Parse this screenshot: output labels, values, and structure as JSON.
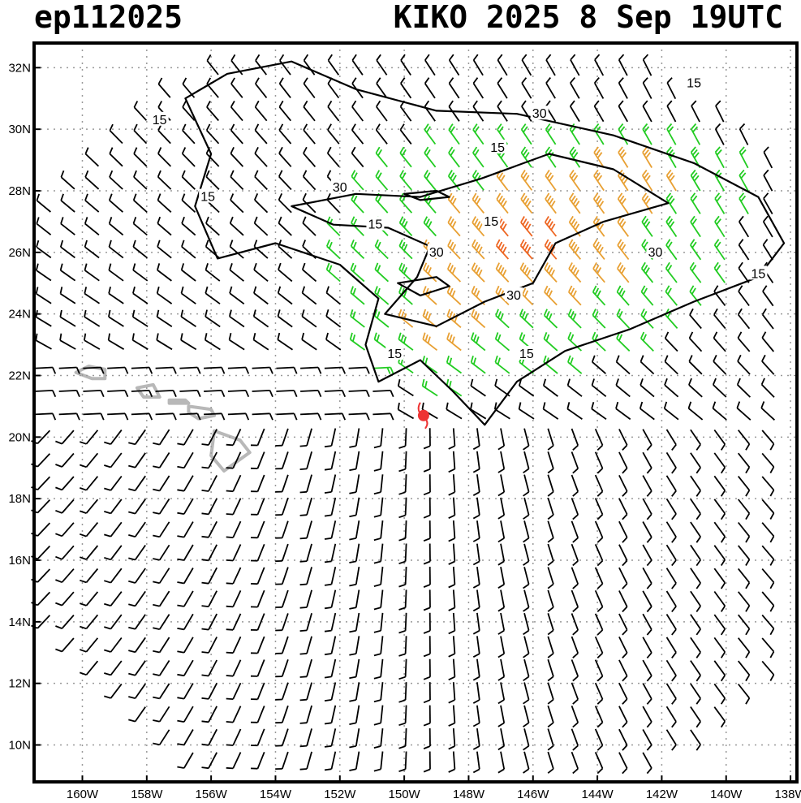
{
  "title_left": "ep112025",
  "title_right": "KIKO 2025  8 Sep 19UTC",
  "map": {
    "lon_range": [
      -161.5,
      -137.8
    ],
    "lat_range": [
      8.8,
      32.8
    ],
    "lat_ticks": [
      "10N",
      "12N",
      "14N",
      "16N",
      "18N",
      "20N",
      "22N",
      "24N",
      "26N",
      "28N",
      "30N",
      "32N"
    ],
    "lon_ticks": [
      "160W",
      "158W",
      "156W",
      "154W",
      "152W",
      "150W",
      "148W",
      "146W",
      "144W",
      "142W",
      "140W",
      "138W"
    ],
    "grid": "dotted",
    "colors": {
      "barb_low": "#000000",
      "barb_mid": "#22cc22",
      "barb_high": "#e8a033",
      "barb_max": "#ee6622",
      "land": "#b8b8b8",
      "storm_center": "#ee3333"
    },
    "storm_center": {
      "lon": -149.4,
      "lat": 20.7
    },
    "contour_labels": [
      {
        "text": "15",
        "lon": -147.3,
        "lat": 27.0
      },
      {
        "text": "15",
        "lon": -141.0,
        "lat": 31.5
      },
      {
        "text": "15",
        "lon": -156.1,
        "lat": 27.8
      },
      {
        "text": "15",
        "lon": -147.1,
        "lat": 29.4
      },
      {
        "text": "15",
        "lon": -150.9,
        "lat": 26.9
      },
      {
        "text": "15",
        "lon": -139.0,
        "lat": 25.3
      },
      {
        "text": "15",
        "lon": -150.3,
        "lat": 22.7
      },
      {
        "text": "15",
        "lon": -146.2,
        "lat": 22.7
      },
      {
        "text": "15",
        "lon": -157.6,
        "lat": 30.3
      },
      {
        "text": "30",
        "lon": -152.0,
        "lat": 28.1
      },
      {
        "text": "30",
        "lon": -145.8,
        "lat": 30.5
      },
      {
        "text": "30",
        "lon": -149.0,
        "lat": 26.0
      },
      {
        "text": "30",
        "lon": -142.2,
        "lat": 26.0
      },
      {
        "text": "30",
        "lon": -146.6,
        "lat": 24.6
      }
    ]
  }
}
